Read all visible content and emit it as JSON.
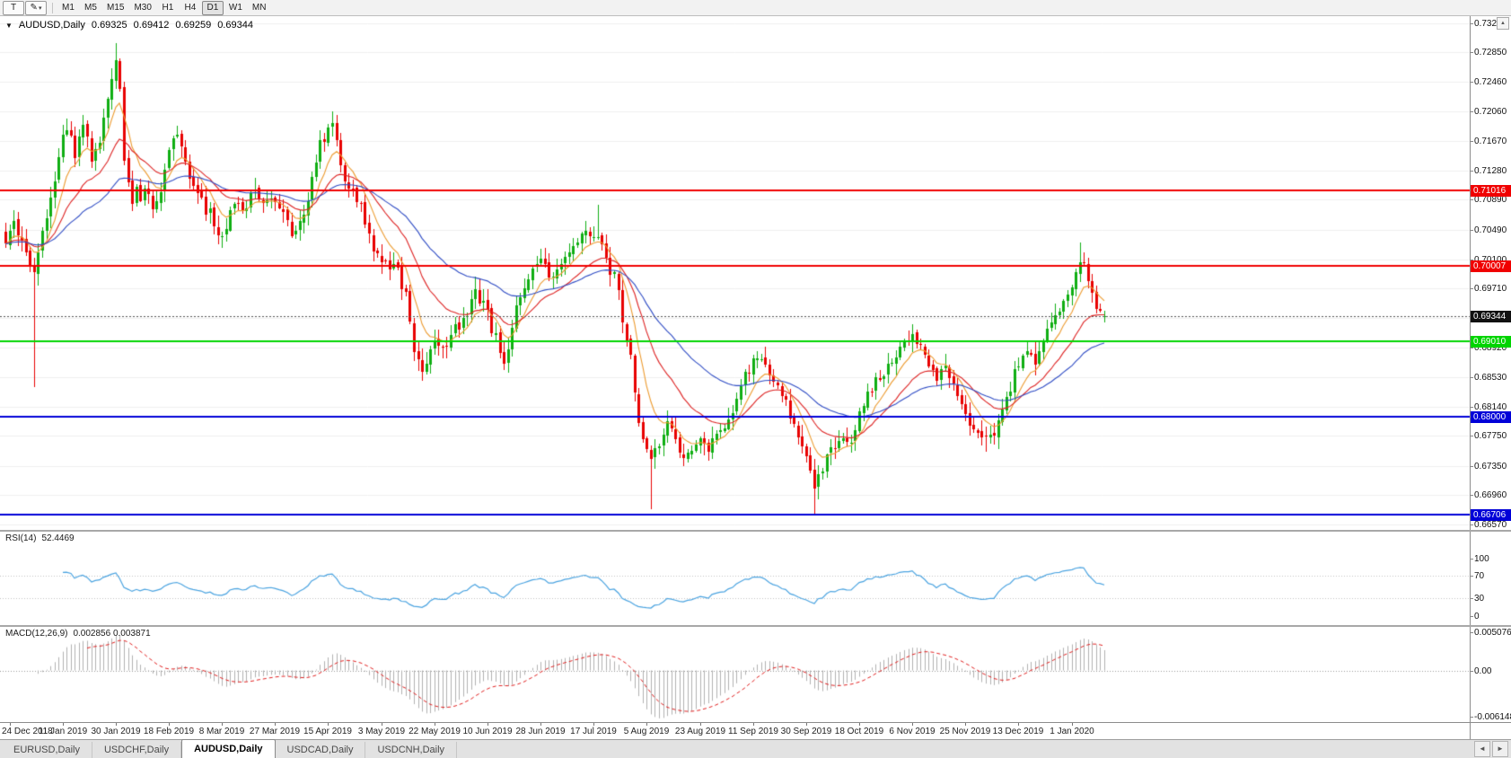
{
  "toolbar": {
    "text_tool": "T",
    "draw_tool": "✎",
    "draw_tool_caret": "▾",
    "timeframes": [
      {
        "label": "M1"
      },
      {
        "label": "M5"
      },
      {
        "label": "M15"
      },
      {
        "label": "M30"
      },
      {
        "label": "H1"
      },
      {
        "label": "H4"
      },
      {
        "label": "D1",
        "active": true
      },
      {
        "label": "W1"
      },
      {
        "label": "MN"
      }
    ]
  },
  "chart": {
    "header": {
      "collapse_icon": "▼",
      "symbol": "AUDUSD,Daily",
      "open": "0.69325",
      "high": "0.69412",
      "low": "0.69259",
      "close": "0.69344"
    },
    "axis_button": "▲",
    "price_axis": {
      "max": 0.7333,
      "min": 0.665,
      "ticks": [
        "0.73240",
        "0.72850",
        "0.72460",
        "0.72060",
        "0.71670",
        "0.71280",
        "0.70890",
        "0.70490",
        "0.70100",
        "0.69710",
        "0.69320",
        "0.68920",
        "0.68530",
        "0.68140",
        "0.67750",
        "0.67350",
        "0.66960",
        "0.66570"
      ]
    },
    "levels": [
      {
        "price": 0.71016,
        "label": "0.71016",
        "color": "#f00000",
        "width": 2,
        "style": "solid"
      },
      {
        "price": 0.70007,
        "label": "0.70007",
        "color": "#f00000",
        "width": 2,
        "style": "solid"
      },
      {
        "price": 0.69344,
        "label": "0.69344",
        "color": "#555555",
        "width": 1,
        "style": "dotted",
        "tag": "#111111"
      },
      {
        "price": 0.6901,
        "label": "0.69010",
        "color": "#00d400",
        "width": 2,
        "style": "solid"
      },
      {
        "price": 0.68,
        "label": "0.68000",
        "color": "#0000d8",
        "width": 2,
        "style": "solid"
      },
      {
        "price": 0.66706,
        "label": "0.66706",
        "color": "#0000d8",
        "width": 2,
        "style": "solid"
      }
    ]
  },
  "chart_data": {
    "type": "candlestick",
    "symbol": "AUDUSD",
    "timeframe": "Daily",
    "candle_count": 270,
    "up_color": "#0fae12",
    "down_color": "#e80000",
    "close_keypoints": [
      [
        0,
        0.7035
      ],
      [
        2,
        0.7055
      ],
      [
        4,
        0.704
      ],
      [
        6,
        0.7008
      ],
      [
        7,
        0.6995
      ],
      [
        9,
        0.7045
      ],
      [
        11,
        0.709
      ],
      [
        13,
        0.715
      ],
      [
        15,
        0.7185
      ],
      [
        17,
        0.7152
      ],
      [
        19,
        0.719
      ],
      [
        21,
        0.7148
      ],
      [
        23,
        0.7162
      ],
      [
        25,
        0.722
      ],
      [
        27,
        0.7278
      ],
      [
        28,
        0.724
      ],
      [
        29,
        0.714
      ],
      [
        31,
        0.7092
      ],
      [
        32,
        0.7112
      ],
      [
        33,
        0.7085
      ],
      [
        34,
        0.7106
      ],
      [
        36,
        0.707
      ],
      [
        38,
        0.7096
      ],
      [
        40,
        0.7155
      ],
      [
        42,
        0.7175
      ],
      [
        44,
        0.7135
      ],
      [
        46,
        0.71
      ],
      [
        48,
        0.7088
      ],
      [
        50,
        0.7068
      ],
      [
        52,
        0.704
      ],
      [
        54,
        0.7056
      ],
      [
        56,
        0.7082
      ],
      [
        58,
        0.707
      ],
      [
        60,
        0.7092
      ],
      [
        62,
        0.7098
      ],
      [
        64,
        0.7082
      ],
      [
        66,
        0.7094
      ],
      [
        68,
        0.7074
      ],
      [
        70,
        0.7048
      ],
      [
        71,
        0.704
      ],
      [
        73,
        0.7068
      ],
      [
        75,
        0.7122
      ],
      [
        77,
        0.7165
      ],
      [
        79,
        0.7182
      ],
      [
        80,
        0.719
      ],
      [
        82,
        0.713
      ],
      [
        84,
        0.7112
      ],
      [
        86,
        0.7095
      ],
      [
        88,
        0.706
      ],
      [
        90,
        0.7014
      ],
      [
        92,
        0.701
      ],
      [
        94,
        0.6996
      ],
      [
        96,
        0.6999
      ],
      [
        98,
        0.6958
      ],
      [
        100,
        0.6895
      ],
      [
        102,
        0.6868
      ],
      [
        104,
        0.689
      ],
      [
        106,
        0.6904
      ],
      [
        108,
        0.6898
      ],
      [
        110,
        0.6916
      ],
      [
        112,
        0.693
      ],
      [
        114,
        0.695
      ],
      [
        115,
        0.6962
      ],
      [
        117,
        0.695
      ],
      [
        119,
        0.692
      ],
      [
        121,
        0.6888
      ],
      [
        122,
        0.6875
      ],
      [
        124,
        0.692
      ],
      [
        126,
        0.6962
      ],
      [
        128,
        0.699
      ],
      [
        130,
        0.701
      ],
      [
        132,
        0.6996
      ],
      [
        134,
        0.698
      ],
      [
        136,
        0.7006
      ],
      [
        138,
        0.7026
      ],
      [
        140,
        0.7036
      ],
      [
        142,
        0.7042
      ],
      [
        144,
        0.7048
      ],
      [
        145,
        0.704
      ],
      [
        147,
        0.7006
      ],
      [
        149,
        0.6988
      ],
      [
        151,
        0.6935
      ],
      [
        153,
        0.688
      ],
      [
        155,
        0.68
      ],
      [
        157,
        0.6756
      ],
      [
        158,
        0.6748
      ],
      [
        160,
        0.6762
      ],
      [
        162,
        0.6786
      ],
      [
        164,
        0.677
      ],
      [
        166,
        0.6737
      ],
      [
        168,
        0.676
      ],
      [
        170,
        0.6776
      ],
      [
        172,
        0.6756
      ],
      [
        174,
        0.677
      ],
      [
        176,
        0.6786
      ],
      [
        178,
        0.6806
      ],
      [
        180,
        0.6846
      ],
      [
        182,
        0.6866
      ],
      [
        184,
        0.688
      ],
      [
        186,
        0.687
      ],
      [
        188,
        0.6856
      ],
      [
        190,
        0.683
      ],
      [
        192,
        0.68
      ],
      [
        194,
        0.6776
      ],
      [
        196,
        0.6746
      ],
      [
        198,
        0.6706
      ],
      [
        200,
        0.6736
      ],
      [
        202,
        0.6756
      ],
      [
        204,
        0.677
      ],
      [
        206,
        0.6762
      ],
      [
        208,
        0.6786
      ],
      [
        210,
        0.6816
      ],
      [
        212,
        0.684
      ],
      [
        214,
        0.6856
      ],
      [
        216,
        0.687
      ],
      [
        218,
        0.6886
      ],
      [
        220,
        0.6896
      ],
      [
        222,
        0.6906
      ],
      [
        224,
        0.689
      ],
      [
        226,
        0.687
      ],
      [
        228,
        0.6856
      ],
      [
        230,
        0.6862
      ],
      [
        232,
        0.684
      ],
      [
        234,
        0.6816
      ],
      [
        236,
        0.6792
      ],
      [
        238,
        0.6776
      ],
      [
        240,
        0.6768
      ],
      [
        242,
        0.678
      ],
      [
        244,
        0.681
      ],
      [
        246,
        0.684
      ],
      [
        248,
        0.687
      ],
      [
        250,
        0.6886
      ],
      [
        252,
        0.687
      ],
      [
        254,
        0.69
      ],
      [
        256,
        0.692
      ],
      [
        258,
        0.6944
      ],
      [
        260,
        0.6962
      ],
      [
        262,
        0.6999
      ],
      [
        263,
        0.7008
      ],
      [
        264,
        0.6996
      ],
      [
        265,
        0.6984
      ],
      [
        266,
        0.6962
      ],
      [
        267,
        0.695
      ],
      [
        268,
        0.6942
      ],
      [
        269,
        0.69344
      ]
    ],
    "wick_overrides": [
      {
        "i": 7,
        "low": 0.684
      },
      {
        "i": 27,
        "high": 0.7297
      },
      {
        "i": 80,
        "high": 0.7206
      },
      {
        "i": 122,
        "low": 0.6862
      },
      {
        "i": 145,
        "high": 0.7082
      },
      {
        "i": 158,
        "low": 0.6677
      },
      {
        "i": 198,
        "low": 0.667
      },
      {
        "i": 240,
        "low": 0.6754
      },
      {
        "i": 263,
        "high": 0.7032
      }
    ],
    "moving_averages": [
      {
        "period": 8,
        "color": "#ec9a2e"
      },
      {
        "period": 20,
        "color": "#dd2222"
      },
      {
        "period": 45,
        "color": "#2f4cc4"
      }
    ],
    "date_ticks": [
      [
        1,
        "24 Dec 2018"
      ],
      [
        14,
        "11 Jan 2019"
      ],
      [
        27,
        "30 Jan 2019"
      ],
      [
        40,
        "18 Feb 2019"
      ],
      [
        53,
        "8 Mar 2019"
      ],
      [
        66,
        "27 Mar 2019"
      ],
      [
        79,
        "15 Apr 2019"
      ],
      [
        92,
        "3 May 2019"
      ],
      [
        105,
        "22 May 2019"
      ],
      [
        118,
        "10 Jun 2019"
      ],
      [
        131,
        "28 Jun 2019"
      ],
      [
        144,
        "17 Jul 2019"
      ],
      [
        157,
        "5 Aug 2019"
      ],
      [
        170,
        "23 Aug 2019"
      ],
      [
        183,
        "11 Sep 2019"
      ],
      [
        196,
        "30 Sep 2019"
      ],
      [
        209,
        "18 Oct 2019"
      ],
      [
        222,
        "6 Nov 2019"
      ],
      [
        235,
        "25 Nov 2019"
      ],
      [
        248,
        "13 Dec 2019"
      ],
      [
        261,
        "1 Jan 2020"
      ]
    ]
  },
  "rsi": {
    "name": "RSI(14)",
    "value": "52.4469",
    "line_color": "#4aa3e0",
    "axis_labels": [
      "100",
      "70",
      "30",
      "0"
    ],
    "dotted_levels": [
      70,
      30
    ]
  },
  "macd": {
    "name": "MACD(12,26,9)",
    "values": "0.002856 0.003871",
    "hist_color": "#b0b0b0",
    "signal_color": "#e02020",
    "axis": {
      "max": 0.005076,
      "min": -0.006148,
      "labels": [
        "0.005076",
        "0.00",
        "-0.006148"
      ]
    }
  },
  "tabs": [
    {
      "label": "EURUSD,Daily"
    },
    {
      "label": "USDCHF,Daily"
    },
    {
      "label": "AUDUSD,Daily",
      "active": true
    },
    {
      "label": "USDCAD,Daily"
    },
    {
      "label": "USDCNH,Daily"
    }
  ],
  "tab_arrows": {
    "left": "◄",
    "right": "►"
  }
}
